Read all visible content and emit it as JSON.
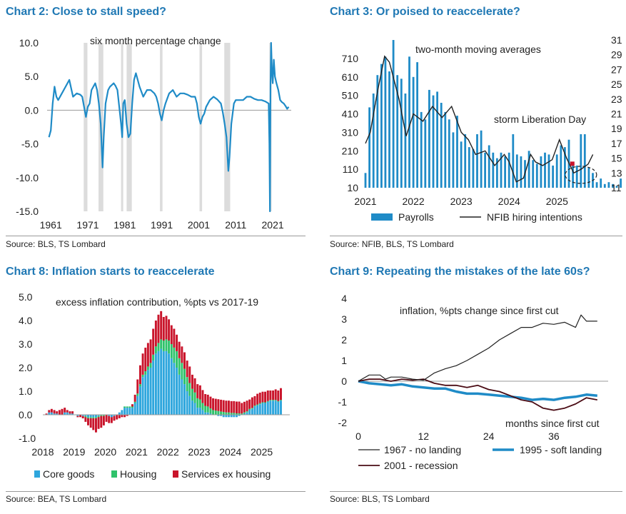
{
  "charts": [
    {
      "id": "c2",
      "title": "Chart 2: Close to stall speed?",
      "source": "Source: BLS, TS Lombard",
      "chart_data": {
        "type": "line",
        "annotation": "six month percentage change",
        "x_ticks": [
          "1961",
          "1971",
          "1981",
          "1991",
          "2001",
          "2011",
          "2021"
        ],
        "y_ticks": [
          "10.0",
          "5.0",
          "0.0",
          "-5.0",
          "-10.0",
          "-15.0"
        ],
        "xlim": [
          1960,
          2026
        ],
        "ylim": [
          -15,
          10
        ],
        "recessions": [
          [
            1969.9,
            1970.9
          ],
          [
            1973.9,
            1975.2
          ],
          [
            1980.0,
            1980.5
          ],
          [
            1981.5,
            1982.9
          ],
          [
            1990.5,
            1991.2
          ],
          [
            2001.2,
            2001.9
          ],
          [
            2007.9,
            2009.5
          ],
          [
            2020.1,
            2020.4
          ]
        ],
        "series": [
          {
            "x": [
              1960.5,
              1961.0,
              1961.5,
              1962.0,
              1962.5,
              1963.0,
              1964.0,
              1965.0,
              1966.0,
              1967.0,
              1968.0,
              1969.0,
              1969.5,
              1970.0,
              1970.5,
              1971.0,
              1971.5,
              1972.0,
              1972.5,
              1973.0,
              1973.5,
              1974.0,
              1974.5,
              1975.0,
              1975.3,
              1975.8,
              1976.5,
              1977.0,
              1978.0,
              1978.5,
              1979.0,
              1980.0,
              1980.3,
              1980.6,
              1981.0,
              1981.5,
              1982.0,
              1982.5,
              1983.0,
              1983.5,
              1984.0,
              1985.0,
              1986.0,
              1987.0,
              1988.0,
              1989.0,
              1989.5,
              1990.0,
              1990.5,
              1991.0,
              1991.5,
              1992.0,
              1993.0,
              1994.0,
              1995.0,
              1996.0,
              1997.0,
              1998.0,
              1999.0,
              2000.0,
              2000.5,
              2001.0,
              2001.5,
              2002.0,
              2002.5,
              2003.0,
              2004.0,
              2005.0,
              2006.0,
              2007.0,
              2007.5,
              2008.0,
              2008.5,
              2009.0,
              2009.3,
              2009.8,
              2010.5,
              2011.0,
              2012.0,
              2013.0,
              2014.0,
              2015.0,
              2016.0,
              2017.0,
              2018.0,
              2019.0,
              2019.9,
              2020.1,
              2020.25,
              2020.4,
              2020.55,
              2020.8,
              2021.0,
              2021.3,
              2021.6,
              2022.0,
              2022.5,
              2023.0,
              2023.5,
              2024.0,
              2024.5,
              2024.9,
              2025.3
            ],
            "y": [
              -4.0,
              -3.0,
              1.0,
              3.5,
              2.0,
              1.5,
              2.5,
              3.5,
              4.5,
              2.0,
              2.5,
              2.3,
              2.0,
              0.5,
              -1.0,
              0.5,
              1.0,
              3.0,
              3.5,
              4.0,
              3.0,
              1.0,
              -2.0,
              -8.5,
              -4.0,
              1.0,
              3.0,
              3.5,
              4.0,
              3.6,
              3.0,
              -2.0,
              -4.0,
              1.0,
              1.5,
              -2.0,
              -4.0,
              -3.5,
              1.0,
              4.5,
              5.5,
              3.5,
              2.0,
              3.0,
              3.0,
              2.5,
              2.0,
              1.0,
              -0.5,
              -1.5,
              0.0,
              1.0,
              2.5,
              3.0,
              2.0,
              2.5,
              2.5,
              2.3,
              2.0,
              2.0,
              1.0,
              -1.0,
              -2.0,
              -1.0,
              -0.5,
              0.5,
              1.5,
              2.0,
              1.6,
              1.0,
              -0.3,
              -2.0,
              -4.0,
              -9.0,
              -7.0,
              -2.0,
              1.0,
              1.5,
              1.5,
              1.5,
              2.0,
              2.0,
              1.7,
              1.5,
              1.5,
              1.3,
              1.0,
              -5.0,
              -15.0,
              4.0,
              10.0,
              5.5,
              4.0,
              7.5,
              5.0,
              4.0,
              3.0,
              1.5,
              1.2,
              1.0,
              0.6,
              0.2,
              0.5
            ],
            "color": "#1f8bc7"
          }
        ]
      }
    },
    {
      "id": "c3",
      "title": "Chart 3: Or poised to reaccelerate?",
      "source": "Source: NFIB, BLS, TS Lombard",
      "chart_data": {
        "type": "bar+line",
        "annotations": [
          "two-month moving averages",
          "storm Liberation Day"
        ],
        "x_ticks": [
          "2021",
          "2022",
          "2023",
          "2024",
          "2025"
        ],
        "y_left_ticks": [
          "710",
          "610",
          "510",
          "410",
          "310",
          "210",
          "110",
          "10"
        ],
        "y_right_ticks": [
          "31",
          "29",
          "27",
          "25",
          "23",
          "21",
          "19",
          "17",
          "15",
          "13",
          "11"
        ],
        "ylim_left": [
          10,
          810
        ],
        "ylim_right": [
          11,
          31
        ],
        "xlim": [
          2021,
          2025.8
        ],
        "bar_x_start": 2021.0,
        "bar_step": 0.0833,
        "bars": [
          90,
          445,
          520,
          620,
          680,
          720,
          640,
          810,
          620,
          600,
          520,
          720,
          610,
          690,
          420,
          380,
          540,
          510,
          530,
          470,
          420,
          380,
          310,
          400,
          260,
          300,
          230,
          220,
          300,
          320,
          200,
          240,
          200,
          170,
          200,
          180,
          200,
          300,
          190,
          180,
          160,
          210,
          160,
          140,
          180,
          200,
          190,
          130,
          190,
          240,
          230,
          270,
          150,
          130,
          300,
          300,
          120,
          90,
          40,
          60,
          30,
          40,
          30,
          20,
          60
        ],
        "line_x": [
          2021.0,
          2021.1,
          2021.25,
          2021.4,
          2021.5,
          2021.7,
          2021.85,
          2022.0,
          2022.2,
          2022.4,
          2022.6,
          2022.8,
          2023.0,
          2023.15,
          2023.3,
          2023.5,
          2023.7,
          2023.9,
          2024.0,
          2024.15,
          2024.3,
          2024.45,
          2024.55,
          2024.7,
          2024.9,
          2025.05,
          2025.2,
          2025.35,
          2025.5,
          2025.65,
          2025.75
        ],
        "line_y": [
          17,
          18.5,
          24,
          28.8,
          28,
          23,
          18,
          21,
          20,
          22,
          20.5,
          22,
          18.5,
          17.5,
          15.5,
          16,
          14,
          15.5,
          14.5,
          11.8,
          12.3,
          15.5,
          14.5,
          14,
          14.8,
          17.5,
          15,
          13,
          13.5,
          14.2,
          15.5
        ],
        "marker": {
          "x": 2025.32,
          "y_left": 140
        },
        "dashed_ellipse": {
          "x": 2025.5,
          "y_left": 80
        },
        "legend": [
          {
            "name": "Payrolls",
            "kind": "bar",
            "color": "#1f8bc7"
          },
          {
            "name": "NFIB hiring intentions",
            "kind": "line",
            "color": "#222222"
          }
        ]
      }
    },
    {
      "id": "c8",
      "title": "Chart 8: Inflation starts to reaccelerate",
      "source": "Source: BEA, TS Lombard",
      "chart_data": {
        "type": "stacked-bar",
        "annotation": "excess inflation contribution, %pts vs 2017-19",
        "x_ticks": [
          "2018",
          "2019",
          "2020",
          "2021",
          "2022",
          "2023",
          "2024",
          "2025"
        ],
        "y_ticks": [
          "5.0",
          "4.0",
          "3.0",
          "2.0",
          "1.0",
          "0.0",
          "-1.0"
        ],
        "ylim": [
          -1,
          5
        ],
        "xlim": [
          2018,
          2025.9
        ],
        "x_start": 2018.0,
        "step": 0.0833,
        "core_goods": [
          0.0,
          0.0,
          0.1,
          0.1,
          0.05,
          0.05,
          0.0,
          0.0,
          0.1,
          0.1,
          0.05,
          0.05,
          0.0,
          -0.05,
          0.0,
          -0.05,
          -0.05,
          -0.1,
          -0.1,
          -0.1,
          -0.1,
          -0.05,
          0.0,
          0.0,
          0.0,
          -0.05,
          -0.1,
          -0.05,
          0.0,
          0.1,
          0.2,
          0.3,
          0.3,
          0.3,
          0.3,
          0.5,
          0.8,
          1.2,
          1.6,
          1.7,
          1.9,
          2.0,
          2.3,
          2.6,
          2.7,
          2.8,
          2.7,
          2.7,
          2.6,
          2.4,
          2.2,
          2.0,
          1.7,
          1.5,
          1.3,
          1.0,
          0.8,
          0.6,
          0.5,
          0.3,
          0.3,
          0.2,
          0.1,
          0.1,
          0.05,
          0.0,
          0.0,
          -0.05,
          -0.05,
          -0.1,
          -0.1,
          -0.1,
          -0.1,
          -0.1,
          -0.1,
          -0.05,
          0.0,
          0.05,
          0.1,
          0.2,
          0.25,
          0.35,
          0.4,
          0.45,
          0.5,
          0.5,
          0.55,
          0.6,
          0.6,
          0.6,
          0.55,
          0.6
        ],
        "housing": [
          0.0,
          0.0,
          0.0,
          0.0,
          0.0,
          0.0,
          0.0,
          0.0,
          0.0,
          0.0,
          0.0,
          0.0,
          0.0,
          0.0,
          0.0,
          0.0,
          -0.05,
          -0.05,
          -0.05,
          -0.05,
          -0.05,
          -0.05,
          -0.05,
          -0.05,
          0.0,
          0.0,
          0.0,
          0.0,
          0.0,
          0.0,
          0.0,
          0.05,
          0.05,
          0.05,
          0.05,
          0.05,
          0.1,
          0.1,
          0.1,
          0.15,
          0.15,
          0.2,
          0.25,
          0.3,
          0.35,
          0.4,
          0.45,
          0.5,
          0.55,
          0.6,
          0.65,
          0.7,
          0.7,
          0.7,
          0.65,
          0.6,
          0.55,
          0.5,
          0.45,
          0.4,
          0.35,
          0.3,
          0.28,
          0.25,
          0.22,
          0.2,
          0.18,
          0.16,
          0.14,
          0.12,
          0.1,
          0.1,
          0.08,
          0.08,
          0.06,
          0.06,
          0.05,
          0.05,
          0.05,
          0.05,
          0.04,
          0.04,
          0.04,
          0.04,
          0.03,
          0.03,
          0.03,
          0.03,
          0.03,
          0.03,
          0.03,
          0.03
        ],
        "services_ex_housing": [
          0.0,
          0.05,
          0.1,
          0.15,
          0.15,
          0.1,
          0.2,
          0.25,
          0.2,
          0.1,
          0.1,
          0.1,
          0.0,
          -0.05,
          -0.1,
          -0.1,
          -0.2,
          -0.3,
          -0.4,
          -0.5,
          -0.6,
          -0.5,
          -0.5,
          -0.4,
          -0.3,
          -0.3,
          -0.25,
          -0.2,
          -0.2,
          -0.15,
          -0.1,
          -0.1,
          -0.05,
          0.0,
          0.1,
          0.3,
          0.6,
          0.8,
          0.9,
          1.0,
          1.0,
          1.0,
          1.1,
          1.1,
          1.2,
          1.2,
          1.0,
          1.0,
          0.9,
          0.8,
          0.8,
          0.7,
          0.7,
          0.7,
          0.7,
          0.7,
          0.7,
          0.6,
          0.6,
          0.6,
          0.6,
          0.55,
          0.5,
          0.5,
          0.5,
          0.5,
          0.5,
          0.5,
          0.5,
          0.5,
          0.5,
          0.5,
          0.5,
          0.5,
          0.5,
          0.5,
          0.45,
          0.45,
          0.45,
          0.4,
          0.45,
          0.4,
          0.45,
          0.45,
          0.45,
          0.45,
          0.45,
          0.4,
          0.4,
          0.45,
          0.45,
          0.5
        ],
        "legend": [
          {
            "name": "Core goods",
            "color": "#2ea6dd"
          },
          {
            "name": "Housing",
            "color": "#2fc26b"
          },
          {
            "name": "Services ex housing",
            "color": "#c9142b"
          }
        ]
      }
    },
    {
      "id": "c9",
      "title": "Chart 9: Repeating the mistakes of the late 60s?",
      "source": "Source: BLS, TS Lombard",
      "chart_data": {
        "type": "line",
        "annotations": [
          "inflation, %pts change since first cut",
          "months since first cut"
        ],
        "x_ticks": [
          "0",
          "12",
          "24",
          "36"
        ],
        "x_tick_values": [
          0,
          12,
          24,
          36
        ],
        "y_ticks": [
          "4",
          "3",
          "2",
          "1",
          "0",
          "-1",
          "-2"
        ],
        "xlim": [
          0,
          46
        ],
        "ylim": [
          -2,
          4
        ],
        "series": [
          {
            "name": "1967 - no landing",
            "color": "#222222",
            "width": 1.2,
            "x": [
              0,
              2,
              4,
              5,
              6,
              8,
              10,
              12,
              14,
              16,
              18,
              20,
              22,
              24,
              26,
              28,
              30,
              32,
              34,
              36,
              38,
              40,
              41,
              42,
              44
            ],
            "y": [
              0,
              0.3,
              0.3,
              0.1,
              0.2,
              0.2,
              0.1,
              0.05,
              0.4,
              0.6,
              0.75,
              1.0,
              1.3,
              1.6,
              2.0,
              2.3,
              2.6,
              2.6,
              2.8,
              2.75,
              2.85,
              2.6,
              3.2,
              2.9,
              2.9
            ]
          },
          {
            "name": "1995 - soft landing",
            "color": "#1f8bc7",
            "width": 3.5,
            "x": [
              0,
              2,
              4,
              6,
              8,
              10,
              12,
              14,
              16,
              18,
              20,
              22,
              24,
              26,
              28,
              30,
              32,
              34,
              36,
              38,
              40,
              42,
              44
            ],
            "y": [
              0,
              -0.1,
              -0.15,
              -0.2,
              -0.15,
              -0.25,
              -0.3,
              -0.35,
              -0.35,
              -0.5,
              -0.6,
              -0.6,
              -0.65,
              -0.7,
              -0.75,
              -0.8,
              -0.9,
              -0.85,
              -0.9,
              -0.8,
              -0.75,
              -0.65,
              -0.7
            ]
          },
          {
            "name": "2001 - recession",
            "color": "#4a0b14",
            "width": 1.8,
            "x": [
              0,
              2,
              4,
              6,
              8,
              10,
              12,
              14,
              16,
              18,
              20,
              22,
              24,
              26,
              28,
              30,
              32,
              34,
              36,
              38,
              40,
              42,
              44
            ],
            "y": [
              0,
              0.1,
              0.1,
              0.0,
              0.1,
              0.05,
              0.1,
              -0.1,
              -0.2,
              -0.2,
              -0.3,
              -0.2,
              -0.4,
              -0.5,
              -0.7,
              -0.9,
              -1.0,
              -1.3,
              -1.4,
              -1.3,
              -1.1,
              -0.8,
              -0.9
            ]
          }
        ]
      }
    }
  ]
}
